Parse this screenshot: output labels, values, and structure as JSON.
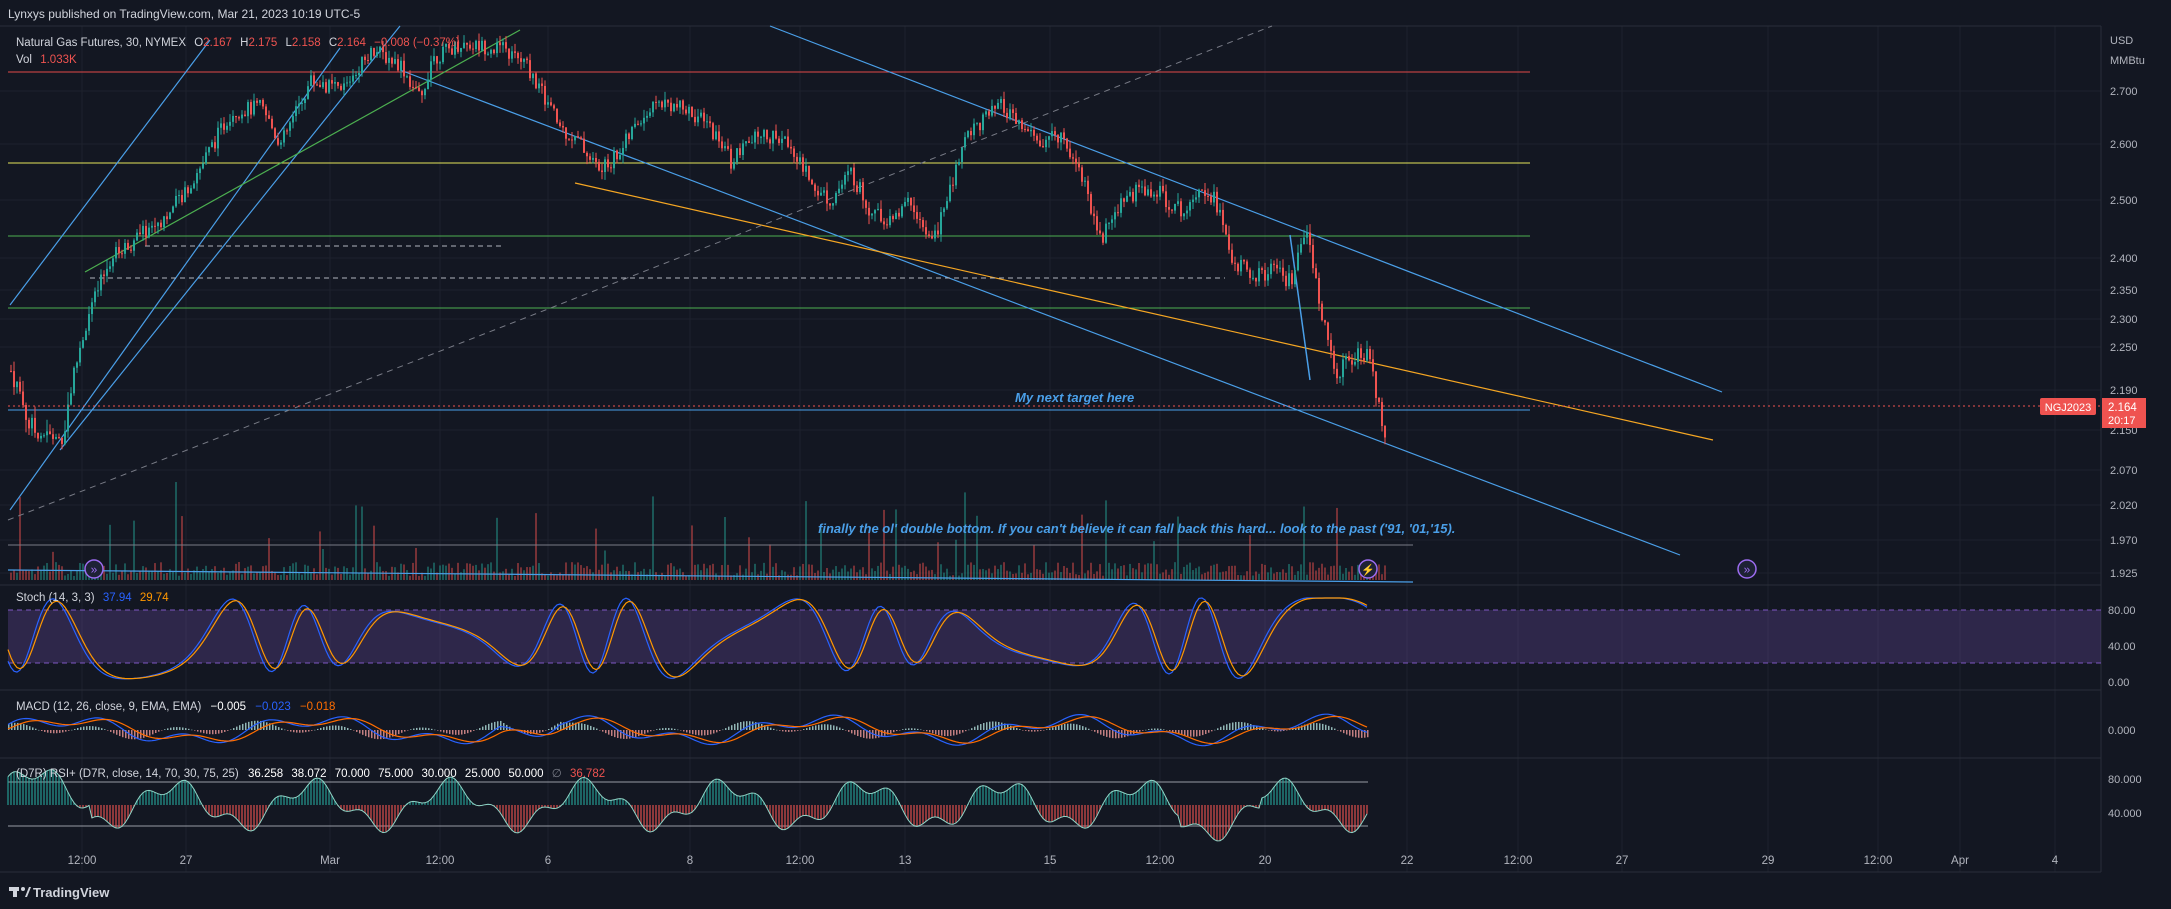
{
  "header": {
    "published": "Lynxys published on TradingView.com, Mar 21, 2023 10:19 UTC-5"
  },
  "legend": {
    "symbol": "Natural Gas Futures, 30, NYMEX",
    "o_label": "O",
    "o": "2.167",
    "h_label": "H",
    "h": "2.175",
    "l_label": "L",
    "l": "2.158",
    "c_label": "C",
    "c": "2.164",
    "change": "−0.008 (−0.37%)",
    "vol_label": "Vol",
    "vol": "1.033K"
  },
  "price_axis": {
    "currency": "USD",
    "unit": "MMBtu",
    "ticks": [
      "2.700",
      "2.600",
      "2.500",
      "2.400",
      "2.350",
      "2.300",
      "2.250",
      "2.190",
      "2.150",
      "2.070",
      "2.020",
      "1.970",
      "1.925"
    ],
    "symbol_tag": "NGJ2023",
    "last_price": "2.164",
    "countdown": "20:17"
  },
  "annotations": {
    "target": "My next target here",
    "double_bottom": "finally the ol' double bottom. If you can't believe it can fall back this hard... look to the past ('91, '01,'15)."
  },
  "stoch": {
    "label": "Stoch (14, 3, 3)",
    "k": "37.94",
    "d": "29.74",
    "ticks": [
      "80.00",
      "40.00",
      "0.00"
    ]
  },
  "macd": {
    "label": "MACD (12, 26, close, 9, EMA, EMA)",
    "hist": "−0.005",
    "macd": "−0.023",
    "signal": "−0.018",
    "ticks": [
      "0.000"
    ]
  },
  "rsi": {
    "label": "(D7R) RSI+ (D7R, close, 14, 70, 30, 75, 25)",
    "values": [
      "36.258",
      "38.072",
      "70.000",
      "75.000",
      "30.000",
      "25.000",
      "50.000"
    ],
    "extra_symbol": "∅",
    "last": "36.782",
    "ticks": [
      "80.000",
      "40.000"
    ]
  },
  "time_axis": {
    "labels": [
      "12:00",
      "27",
      "Mar",
      "12:00",
      "6",
      "8",
      "12:00",
      "13",
      "15",
      "12:00",
      "20",
      "22",
      "12:00",
      "27",
      "29",
      "12:00",
      "Apr",
      "4"
    ]
  },
  "footer": {
    "brand": "TradingView"
  },
  "colors": {
    "background": "#131722",
    "up": "#26a69a",
    "down": "#ef5350",
    "channel": "#4a9fe8",
    "orange": "#f5a623",
    "yellow": "#e6e65a",
    "green": "#4caf50",
    "stoch_k": "#2962ff",
    "stoch_d": "#ff9800",
    "stoch_band": "#7e57c2",
    "rsi": "#d1d4dc"
  },
  "chart_data": {
    "type": "candlestick",
    "symbol": "NGJ2023",
    "timeframe": "30",
    "ylim": [
      1.9,
      2.77
    ],
    "x_labels": [
      "12:00",
      "27",
      "Mar",
      "12:00",
      "6",
      "8",
      "12:00",
      "13",
      "15",
      "12:00",
      "20",
      "22",
      "12:00",
      "27",
      "29",
      "12:00",
      "Apr",
      "4"
    ],
    "close_path": [
      [
        0,
        2.25
      ],
      [
        30,
        2.15
      ],
      [
        60,
        2.13
      ],
      [
        90,
        2.32
      ],
      [
        110,
        2.4
      ],
      [
        140,
        2.44
      ],
      [
        170,
        2.48
      ],
      [
        200,
        2.56
      ],
      [
        230,
        2.66
      ],
      [
        260,
        2.67
      ],
      [
        280,
        2.6
      ],
      [
        310,
        2.72
      ],
      [
        340,
        2.7
      ],
      [
        370,
        2.78
      ],
      [
        400,
        2.75
      ],
      [
        420,
        2.68
      ],
      [
        430,
        2.76
      ],
      [
        460,
        2.79
      ],
      [
        500,
        2.78
      ],
      [
        525,
        2.75
      ],
      [
        540,
        2.7
      ],
      [
        560,
        2.63
      ],
      [
        580,
        2.6
      ],
      [
        600,
        2.55
      ],
      [
        620,
        2.59
      ],
      [
        640,
        2.65
      ],
      [
        660,
        2.68
      ],
      [
        690,
        2.66
      ],
      [
        710,
        2.63
      ],
      [
        730,
        2.57
      ],
      [
        760,
        2.62
      ],
      [
        790,
        2.6
      ],
      [
        810,
        2.53
      ],
      [
        830,
        2.5
      ],
      [
        850,
        2.55
      ],
      [
        870,
        2.48
      ],
      [
        890,
        2.46
      ],
      [
        910,
        2.5
      ],
      [
        930,
        2.42
      ],
      [
        950,
        2.52
      ],
      [
        965,
        2.62
      ],
      [
        985,
        2.65
      ],
      [
        1000,
        2.67
      ],
      [
        1015,
        2.64
      ],
      [
        1040,
        2.6
      ],
      [
        1060,
        2.62
      ],
      [
        1080,
        2.55
      ],
      [
        1100,
        2.43
      ],
      [
        1120,
        2.5
      ],
      [
        1140,
        2.52
      ],
      [
        1160,
        2.51
      ],
      [
        1180,
        2.48
      ],
      [
        1200,
        2.53
      ],
      [
        1215,
        2.5
      ],
      [
        1230,
        2.4
      ],
      [
        1250,
        2.37
      ],
      [
        1270,
        2.38
      ],
      [
        1290,
        2.36
      ],
      [
        1305,
        2.44
      ],
      [
        1320,
        2.32
      ],
      [
        1335,
        2.21
      ],
      [
        1355,
        2.24
      ],
      [
        1370,
        2.23
      ],
      [
        1380,
        2.16
      ],
      [
        1383,
        2.14
      ],
      [
        1386,
        2.164
      ]
    ],
    "horizontal_levels": [
      {
        "y": 2.76,
        "color": "red"
      },
      {
        "y": 2.56,
        "color": "yellow"
      },
      {
        "y": 2.452,
        "color": "green"
      },
      {
        "y": 2.328,
        "color": "green"
      },
      {
        "y": 2.17,
        "color": "blue"
      },
      {
        "y": 1.968,
        "color": "gray"
      }
    ],
    "trend_lines": [
      {
        "name": "Upper channel",
        "from": [
          785,
          2.84
        ],
        "to": [
          1735,
          2.22
        ],
        "color": "blue"
      },
      {
        "name": "Lower channel",
        "from": [
          420,
          2.73
        ],
        "to": [
          1700,
          1.97
        ],
        "color": "blue"
      },
      {
        "name": "Orange support",
        "from": [
          582,
          2.527
        ],
        "to": [
          1735,
          2.125
        ],
        "color": "orange"
      },
      {
        "name": "Dashed projection",
        "from": [
          8,
          2.015
        ],
        "to": [
          1290,
          2.89
        ],
        "color": "gray"
      }
    ]
  }
}
